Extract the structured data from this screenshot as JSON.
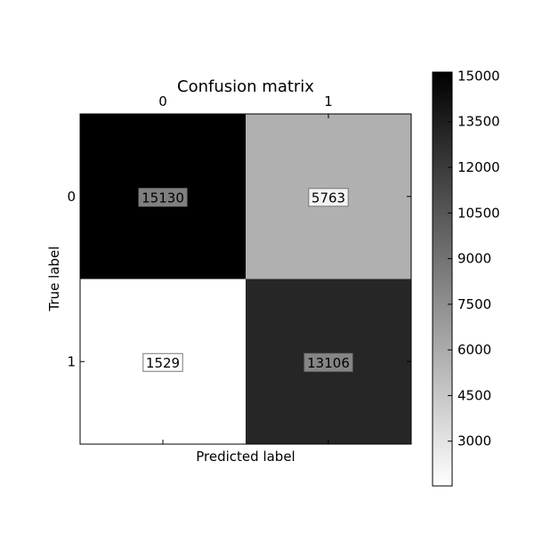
{
  "chart_data": {
    "type": "heatmap",
    "title": "Confusion matrix",
    "xlabel": "Predicted label",
    "ylabel": "True label",
    "x_categories": [
      "0",
      "1"
    ],
    "y_categories": [
      "0",
      "1"
    ],
    "values": [
      [
        15130,
        5763
      ],
      [
        1529,
        13106
      ]
    ],
    "cell_labels": [
      [
        "15130",
        "5763"
      ],
      [
        "1529",
        "13106"
      ]
    ],
    "colormap": "gray_r",
    "color_range": [
      1529,
      15130
    ],
    "colorbar": {
      "ticks": [
        3000,
        4500,
        6000,
        7500,
        9000,
        10500,
        12000,
        13500,
        15000
      ],
      "tick_labels": [
        "3000",
        "4500",
        "6000",
        "7500",
        "9000",
        "10500",
        "12000",
        "13500",
        "15000"
      ]
    },
    "colors": {
      "high": "#000000",
      "low": "#ffffff",
      "label_box_border": "#777777"
    }
  }
}
